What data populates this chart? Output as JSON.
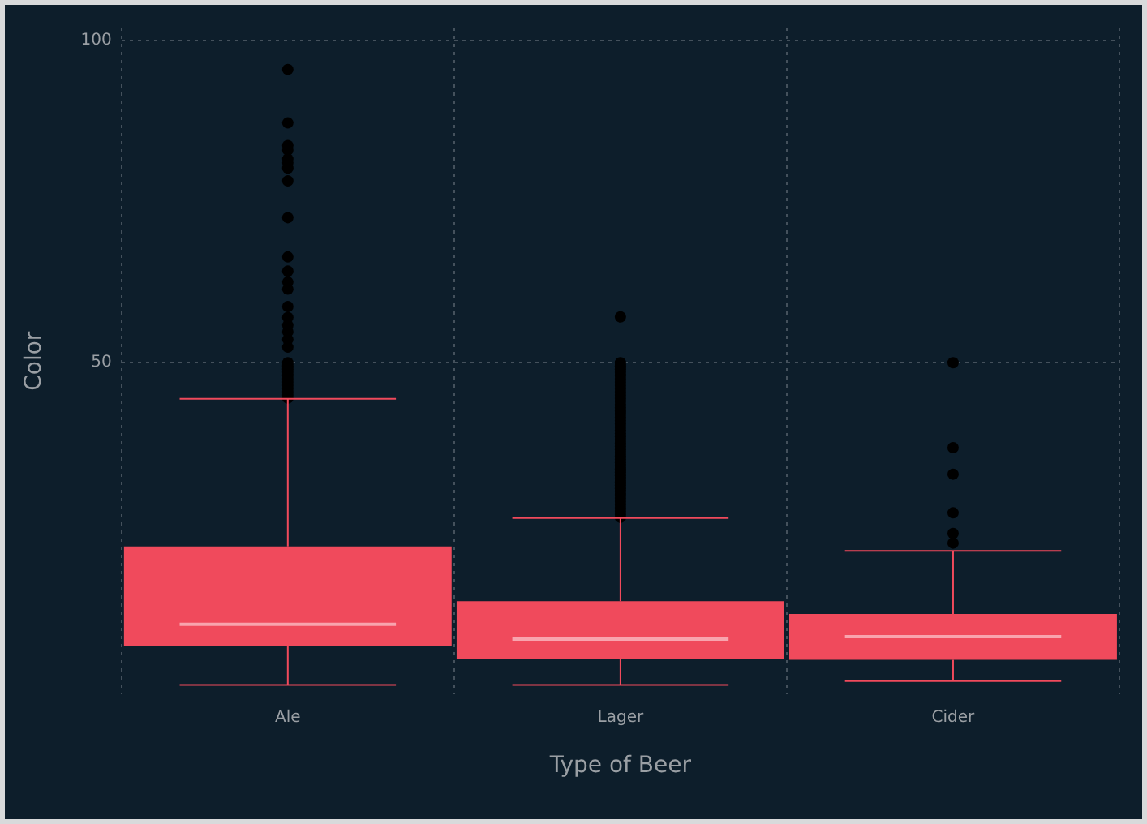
{
  "chart_data": {
    "type": "box",
    "xlabel": "Type of Beer",
    "ylabel": "Color",
    "categories": [
      "Ale",
      "Lager",
      "Cider"
    ],
    "ylim": [
      -1.5,
      102
    ],
    "yticks": [
      50,
      100
    ],
    "grid": true,
    "series": [
      {
        "color": "#f04a5c",
        "boxes": [
          {
            "low": 0,
            "q1": 6.1,
            "median": 9.4,
            "q3": 21.5,
            "high": 44.4,
            "outliers": [
              95.5,
              87.2,
              83.7,
              83,
              81.6,
              81,
              80.2,
              78.2,
              72.5,
              66.4,
              64.2,
              62.5,
              61.4,
              58.7,
              57,
              55.8,
              54.8,
              53.6,
              52.4,
              50,
              49.5,
              49,
              48.5,
              48,
              47.5,
              47,
              46.5,
              46,
              45.5,
              45,
              44.5
            ]
          },
          {
            "low": 0,
            "q1": 4,
            "median": 7.1,
            "q3": 13,
            "high": 25.9,
            "outliers": [
              57.1,
              50,
              49.5,
              49,
              48.5,
              48,
              47.5,
              47,
              46.5,
              46,
              45.5,
              45,
              44.5,
              44,
              43.5,
              43,
              42.5,
              42,
              41.5,
              41,
              40.5,
              40,
              39.5,
              39,
              38.5,
              38,
              37.5,
              37,
              36.5,
              36,
              35.5,
              35,
              34.5,
              34,
              33.5,
              33,
              32.5,
              32,
              31.5,
              31,
              30.5,
              30,
              29.5,
              29,
              28.5,
              28,
              27.5,
              27,
              26.5,
              26
            ]
          },
          {
            "low": 0.6,
            "q1": 3.9,
            "median": 7.5,
            "q3": 11,
            "high": 20.8,
            "outliers": [
              50,
              36.8,
              32.7,
              26.7,
              23.5,
              22
            ]
          }
        ]
      }
    ]
  }
}
